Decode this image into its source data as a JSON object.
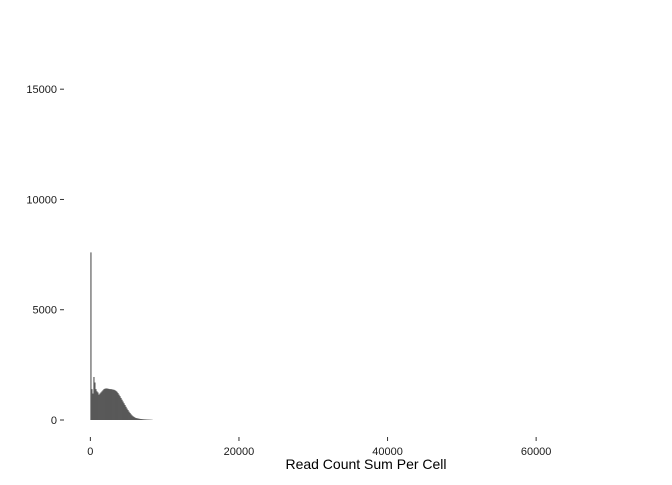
{
  "chart_data": {
    "type": "bar",
    "subtype": "histogram",
    "title": "",
    "xlabel": "Read Count Sum Per Cell",
    "ylabel": "",
    "xlim": [
      -1800,
      76000
    ],
    "ylim": [
      0,
      18500
    ],
    "x_ticks": [
      {
        "value": 0,
        "label": "0"
      },
      {
        "value": 20000,
        "label": "20000"
      },
      {
        "value": 40000,
        "label": "40000"
      },
      {
        "value": 60000,
        "label": "60000"
      }
    ],
    "y_ticks": [
      {
        "value": 0,
        "label": "0"
      },
      {
        "value": 5000,
        "label": "5000"
      },
      {
        "value": 10000,
        "label": "10000"
      },
      {
        "value": 15000,
        "label": "15000"
      }
    ],
    "grid": false,
    "legend": "none",
    "bar_color": "#595959",
    "bin_width": 135,
    "series": [
      {
        "x": [
          0,
          135,
          270,
          405,
          540,
          675,
          810,
          945,
          1080,
          1215,
          1350,
          1485,
          1620,
          1755,
          1890,
          2025,
          2160,
          2295,
          2430,
          2565,
          2700,
          2835,
          2970,
          3105,
          3240,
          3375,
          3510,
          3645,
          3780,
          3915,
          4050,
          4185,
          4320,
          4455,
          4590,
          4725,
          4860,
          4995,
          5130,
          5265,
          5400,
          5535,
          5670,
          5805,
          5940,
          6075,
          6210,
          6345,
          6480,
          6615,
          6750,
          6885,
          7020,
          7155,
          7290,
          7425,
          7560,
          7695,
          7830,
          7965,
          8100,
          8235
        ],
        "values": [
          7600,
          1400,
          1200,
          1950,
          1700,
          1400,
          1300,
          1250,
          1150,
          1200,
          1250,
          1300,
          1350,
          1400,
          1420,
          1430,
          1430,
          1420,
          1410,
          1400,
          1400,
          1390,
          1380,
          1370,
          1350,
          1320,
          1280,
          1220,
          1150,
          1080,
          1000,
          920,
          840,
          760,
          680,
          600,
          520,
          450,
          380,
          320,
          260,
          210,
          170,
          140,
          110,
          90,
          80,
          70,
          60,
          50,
          45,
          40,
          35,
          30,
          28,
          25,
          22,
          20,
          18,
          15,
          12,
          10
        ]
      }
    ]
  }
}
